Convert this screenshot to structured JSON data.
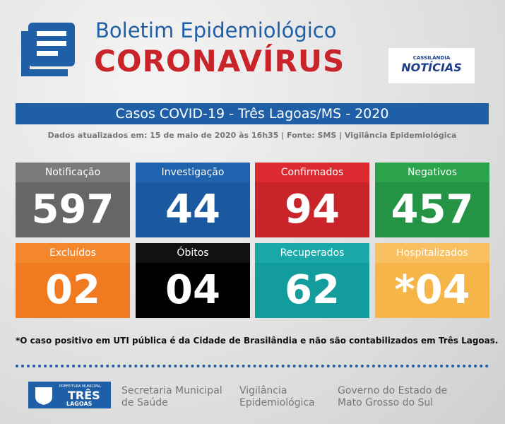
{
  "header": {
    "title": "Boletim Epidemiológico",
    "subtitle": "CORONAVÍRUS",
    "logo_top": "CASSILÂNDIA",
    "logo_main": "NOTÍCIAS"
  },
  "banner": "Casos COVID-19 - Três Lagoas/MS - 2020",
  "update_note": "Dados atualizados em: 15 de maio de 2020 às 16h35 | Fonte: SMS | Vigilância Epidemiológica",
  "cards": [
    {
      "label": "Notificação",
      "value": "597"
    },
    {
      "label": "Investigação",
      "value": "44"
    },
    {
      "label": "Confirmados",
      "value": "94"
    },
    {
      "label": "Negativos",
      "value": "457"
    },
    {
      "label": "Excluídos",
      "value": "02"
    },
    {
      "label": "Óbitos",
      "value": "04"
    },
    {
      "label": "Recuperados",
      "value": "62"
    },
    {
      "label": "Hospitalizados",
      "value": "*04"
    }
  ],
  "footnote": "*O caso positivo em UTI pública é da Cidade de Brasilândia e não são contabilizados em Três Lagoas.",
  "footer": {
    "city_logo_top": "PREFEITURA MUNICIPAL",
    "city_logo_main": "TRÊS",
    "city_logo_bottom": "LAGOAS",
    "items": [
      "Secretaria Municipal de Saúde",
      "Vigilância Epidemiológica",
      "Governo do Estado de Mato Grosso do Sul"
    ]
  }
}
